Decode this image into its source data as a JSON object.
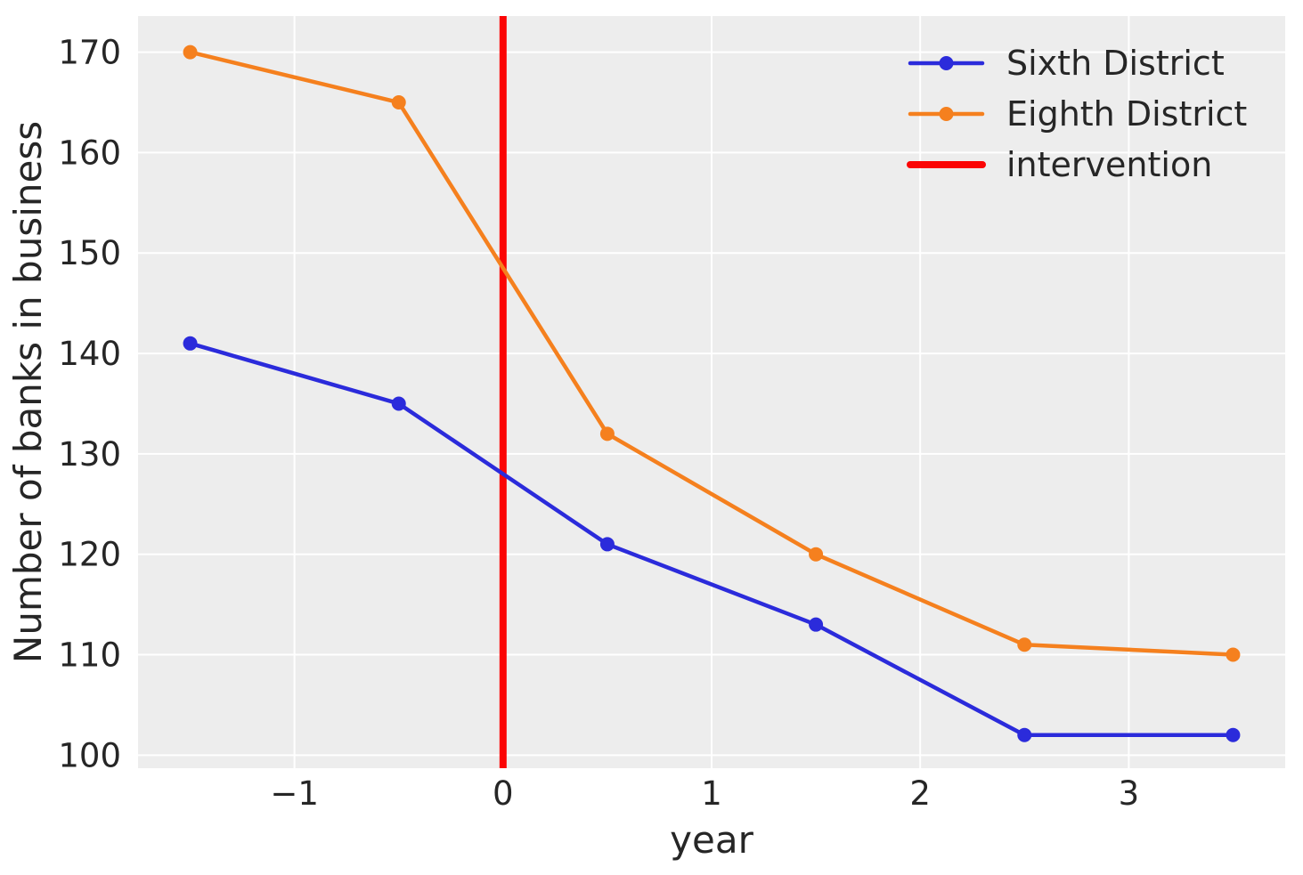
{
  "chart_data": {
    "type": "line",
    "title": "",
    "xlabel": "year",
    "ylabel": "Number of banks in business",
    "x": [
      -1.5,
      -0.5,
      0.5,
      1.5,
      2.5,
      3.5
    ],
    "series": [
      {
        "name": "Sixth District",
        "color": "#2b2bdb",
        "values": [
          141,
          135,
          121,
          113,
          102,
          102
        ]
      },
      {
        "name": "Eighth District",
        "color": "#f5801e",
        "values": [
          170,
          165,
          132,
          120,
          111,
          110
        ]
      }
    ],
    "vline": {
      "label": "intervention",
      "x": 0,
      "color": "#fb0505"
    },
    "xlim": [
      -1.75,
      3.75
    ],
    "ylim": [
      98.7,
      173.6
    ],
    "xticks": [
      -1,
      0,
      1,
      2,
      3
    ],
    "xtick_labels": [
      "−1",
      "0",
      "1",
      "2",
      "3"
    ],
    "yticks": [
      100,
      110,
      120,
      130,
      140,
      150,
      160,
      170
    ],
    "ytick_labels": [
      "100",
      "110",
      "120",
      "130",
      "140",
      "150",
      "160",
      "170"
    ],
    "grid": true,
    "legend": {
      "position": "upper right",
      "entries": [
        "Sixth District",
        "Eighth District",
        "intervention"
      ]
    },
    "style": {
      "plot_background": "#ededed",
      "grid_color": "#ffffff",
      "text_color": "#262626",
      "line_width": 4.5,
      "marker_radius": 8,
      "vline_width": 8
    }
  }
}
